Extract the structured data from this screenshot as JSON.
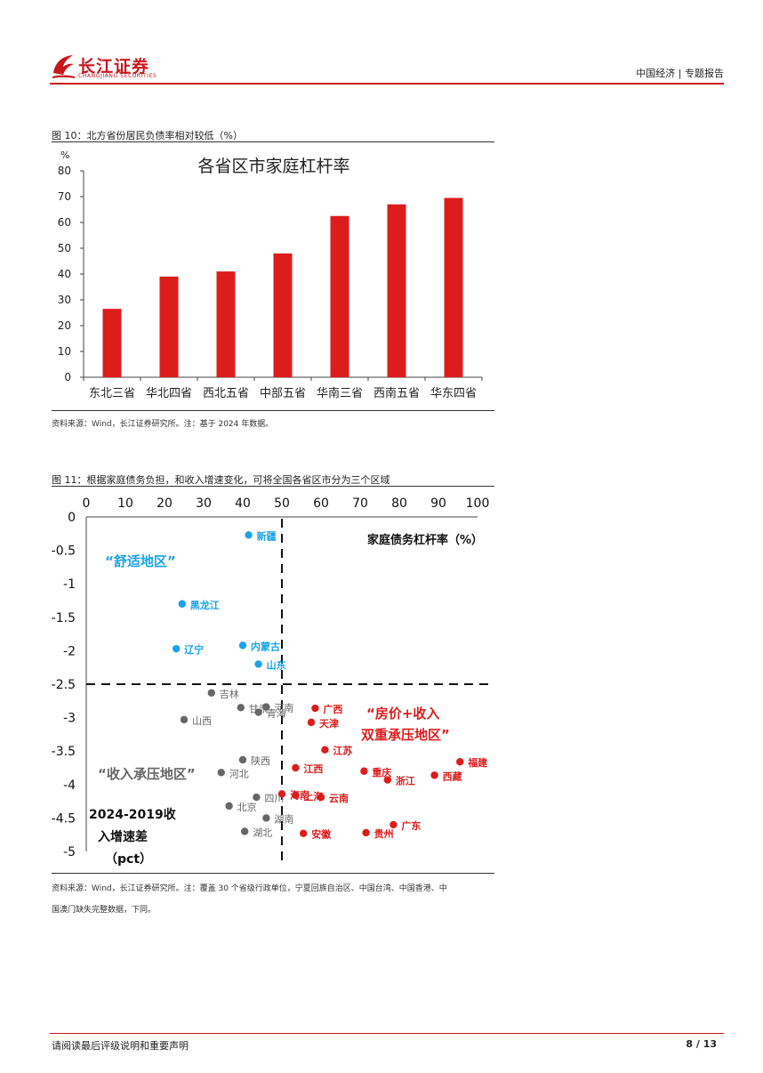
{
  "header": {
    "logo_cn": "长江证券",
    "logo_en": "CHANGJIANG SECURITIES",
    "right_text": "中国经济 | 专题报告"
  },
  "colors": {
    "brand": "#c8161d",
    "bar": "#dd1c1c",
    "north": "#1aa3e8",
    "south": "#dd1c1c",
    "middle": "#666666"
  },
  "figure10": {
    "caption": "图 10：北方省份居民负债率相对较低（%）",
    "source": "资料来源：Wind，长江证券研究所。注：基于 2024 年数据。"
  },
  "figure11": {
    "caption": "图 11：根据家庭债务负担，和收入增速变化，可将全国各省区市分为三个区域",
    "source_line1": "资料来源：Wind，长江证券研究所。注：覆盖 30 个省级行政单位，宁夏回族自治区、中国台湾、中国香港、中",
    "source_line2": "国澳门缺失完整数据，下同。"
  },
  "footer": {
    "left": "请阅读最后评级说明和重要声明",
    "page": "8 / 13"
  },
  "chart_data": [
    {
      "type": "bar",
      "title": "各省区市家庭杠杆率",
      "ylabel": "%",
      "categories": [
        "东北三省",
        "华北四省",
        "西北五省",
        "中部五省",
        "华南三省",
        "西南五省",
        "华东四省"
      ],
      "values": [
        26.5,
        39,
        41,
        48,
        62.5,
        67,
        69.5
      ],
      "ylim": [
        0,
        80
      ],
      "yticks": [
        0,
        10,
        20,
        30,
        40,
        50,
        60,
        70,
        80
      ],
      "grid": false
    },
    {
      "type": "scatter",
      "xlabel": "家庭债务杠杆率（%）",
      "ylabel_lines": [
        "2024-2019收",
        "入增速差",
        "（pct）"
      ],
      "xlim": [
        0,
        100
      ],
      "ylim": [
        -5,
        0
      ],
      "xticks": [
        0,
        10,
        20,
        30,
        40,
        50,
        60,
        70,
        80,
        90,
        100
      ],
      "yticks": [
        0,
        -0.5,
        -1,
        -1.5,
        -2,
        -2.5,
        -3,
        -3.5,
        -4,
        -4.5,
        -5
      ],
      "threshold_x": 50,
      "threshold_y": -2.5,
      "region_labels": {
        "comfortable": "“舒适地区”",
        "double_pressure_1": "“房价+收入",
        "double_pressure_2": "双重承压地区”",
        "income_pressure": "“收入承压地区”"
      },
      "series": [
        {
          "group": "comfortable",
          "points": [
            {
              "name": "新疆",
              "x": 41.5,
              "y": -0.27
            },
            {
              "name": "黑龙江",
              "x": 24.5,
              "y": -1.3
            },
            {
              "name": "内蒙古",
              "x": 40,
              "y": -1.92
            },
            {
              "name": "辽宁",
              "x": 23,
              "y": -1.97
            },
            {
              "name": "山东",
              "x": 44,
              "y": -2.2
            }
          ]
        },
        {
          "group": "income_pressure",
          "points": [
            {
              "name": "吉林",
              "x": 32,
              "y": -2.63
            },
            {
              "name": "甘肃",
              "x": 39.5,
              "y": -2.85
            },
            {
              "name": "河南",
              "x": 46,
              "y": -2.84
            },
            {
              "name": "青海",
              "x": 44,
              "y": -2.92
            },
            {
              "name": "山西",
              "x": 25,
              "y": -3.03
            },
            {
              "name": "陕西",
              "x": 40,
              "y": -3.63
            },
            {
              "name": "河北",
              "x": 34.5,
              "y": -3.82
            },
            {
              "name": "四川",
              "x": 43.5,
              "y": -4.19
            },
            {
              "name": "北京",
              "x": 36.5,
              "y": -4.32
            },
            {
              "name": "湖南",
              "x": 46,
              "y": -4.5
            },
            {
              "name": "湖北",
              "x": 40.5,
              "y": -4.7
            }
          ]
        },
        {
          "group": "double_pressure",
          "points": [
            {
              "name": "广西",
              "x": 58.5,
              "y": -2.86
            },
            {
              "name": "天津",
              "x": 57.5,
              "y": -3.07
            },
            {
              "name": "江苏",
              "x": 61,
              "y": -3.48
            },
            {
              "name": "江西",
              "x": 53.5,
              "y": -3.75
            },
            {
              "name": "海南",
              "x": 50,
              "y": -4.14
            },
            {
              "name": "上海",
              "x": 53.5,
              "y": -4.16
            },
            {
              "name": "云南",
              "x": 60,
              "y": -4.19
            },
            {
              "name": "重庆",
              "x": 71,
              "y": -3.8
            },
            {
              "name": "浙江",
              "x": 77,
              "y": -3.93
            },
            {
              "name": "西藏",
              "x": 89,
              "y": -3.86
            },
            {
              "name": "福建",
              "x": 95.5,
              "y": -3.66
            },
            {
              "name": "安徽",
              "x": 55.5,
              "y": -4.73
            },
            {
              "name": "贵州",
              "x": 71.5,
              "y": -4.72
            },
            {
              "name": "广东",
              "x": 78.5,
              "y": -4.6
            }
          ]
        }
      ]
    }
  ]
}
